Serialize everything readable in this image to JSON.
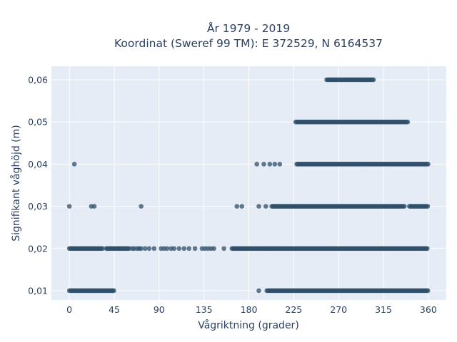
{
  "chart_data": {
    "type": "scatter",
    "title": "År 1979 - 2019",
    "subtitle": "Koordinat (Sweref 99 TM): E 372529, N 6164537",
    "xlabel": "Vågriktning (grader)",
    "ylabel": "Signifikant våghöjd (m)",
    "xlim": [
      -18,
      378
    ],
    "ylim": [
      0.0078,
      0.0632
    ],
    "x_ticks": [
      0,
      45,
      90,
      135,
      180,
      225,
      270,
      315,
      360
    ],
    "x_tick_labels": [
      "0",
      "45",
      "90",
      "135",
      "180",
      "225",
      "270",
      "315",
      "360"
    ],
    "y_ticks": [
      0.01,
      0.02,
      0.03,
      0.04,
      0.05,
      0.06
    ],
    "y_tick_labels": [
      "0,01",
      "0,02",
      "0,03",
      "0,04",
      "0,05",
      "0,06"
    ],
    "grid": true,
    "plot_background": "#e5ecf6",
    "marker_color": "#2f4f6a",
    "series": [
      {
        "segments": [
          {
            "y": 0.06,
            "x_from": 258,
            "x_to": 305
          },
          {
            "y": 0.05,
            "x_from": 227,
            "x_to": 340
          },
          {
            "y": 0.04,
            "x_from": 228,
            "x_to": 360
          },
          {
            "y": 0.03,
            "x_from": 203,
            "x_to": 337
          },
          {
            "y": 0.03,
            "x_from": 341,
            "x_to": 360
          },
          {
            "y": 0.02,
            "x_from": 0,
            "x_to": 34
          },
          {
            "y": 0.02,
            "x_from": 37,
            "x_to": 60
          },
          {
            "y": 0.02,
            "x_from": 163,
            "x_to": 360
          },
          {
            "y": 0.01,
            "x_from": 0,
            "x_to": 45
          },
          {
            "y": 0.01,
            "x_from": 198,
            "x_to": 360
          }
        ],
        "points": [
          {
            "x": 5,
            "y": 0.04
          },
          {
            "x": 188,
            "y": 0.04
          },
          {
            "x": 195,
            "y": 0.04
          },
          {
            "x": 201,
            "y": 0.04
          },
          {
            "x": 206,
            "y": 0.04
          },
          {
            "x": 211,
            "y": 0.04
          },
          {
            "x": 0,
            "y": 0.03
          },
          {
            "x": 22,
            "y": 0.03
          },
          {
            "x": 25,
            "y": 0.03
          },
          {
            "x": 72,
            "y": 0.03
          },
          {
            "x": 168,
            "y": 0.03
          },
          {
            "x": 173,
            "y": 0.03
          },
          {
            "x": 190,
            "y": 0.03
          },
          {
            "x": 197,
            "y": 0.03
          },
          {
            "x": 63,
            "y": 0.02
          },
          {
            "x": 65,
            "y": 0.02
          },
          {
            "x": 68,
            "y": 0.02
          },
          {
            "x": 70,
            "y": 0.02
          },
          {
            "x": 72,
            "y": 0.02
          },
          {
            "x": 76,
            "y": 0.02
          },
          {
            "x": 80,
            "y": 0.02
          },
          {
            "x": 85,
            "y": 0.02
          },
          {
            "x": 92,
            "y": 0.02
          },
          {
            "x": 95,
            "y": 0.02
          },
          {
            "x": 98,
            "y": 0.02
          },
          {
            "x": 102,
            "y": 0.02
          },
          {
            "x": 105,
            "y": 0.02
          },
          {
            "x": 110,
            "y": 0.02
          },
          {
            "x": 115,
            "y": 0.02
          },
          {
            "x": 120,
            "y": 0.02
          },
          {
            "x": 126,
            "y": 0.02
          },
          {
            "x": 133,
            "y": 0.02
          },
          {
            "x": 136,
            "y": 0.02
          },
          {
            "x": 139,
            "y": 0.02
          },
          {
            "x": 142,
            "y": 0.02
          },
          {
            "x": 145,
            "y": 0.02
          },
          {
            "x": 155,
            "y": 0.02
          },
          {
            "x": 190,
            "y": 0.01
          }
        ]
      }
    ]
  }
}
